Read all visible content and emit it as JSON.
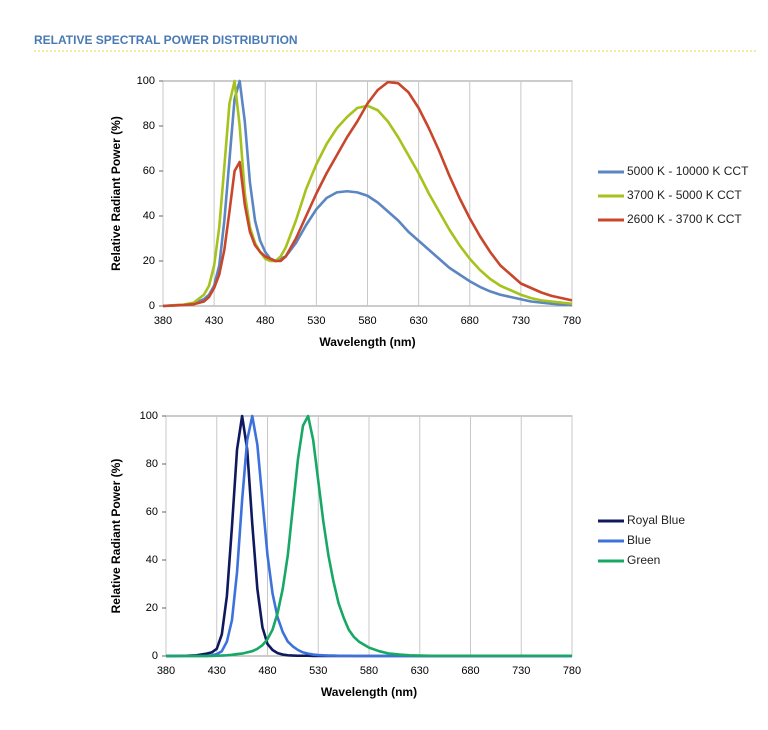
{
  "header": {
    "title": "RELATIVE SPECTRAL POWER DISTRIBUTION"
  },
  "chart_data": [
    {
      "type": "line",
      "x_label": "Wavelength (nm)",
      "y_label": "Relative Radiant Power (%)",
      "xlim": [
        380,
        780
      ],
      "ylim": [
        0,
        100
      ],
      "xticks": [
        380,
        430,
        480,
        530,
        580,
        630,
        680,
        730,
        780
      ],
      "yticks": [
        0,
        20,
        40,
        60,
        80,
        100
      ],
      "grid": true,
      "legend": "right",
      "x": [
        380,
        390,
        400,
        410,
        420,
        425,
        430,
        435,
        440,
        445,
        450,
        455,
        460,
        465,
        470,
        475,
        480,
        485,
        490,
        495,
        500,
        510,
        520,
        530,
        540,
        550,
        560,
        570,
        580,
        590,
        600,
        610,
        620,
        630,
        640,
        650,
        660,
        670,
        680,
        690,
        700,
        710,
        720,
        730,
        740,
        750,
        760,
        770,
        780
      ],
      "series": [
        {
          "name": "5000 K - 10000 K CCT",
          "color": "#5b86c2",
          "values": [
            0,
            0.3,
            0.5,
            1,
            3,
            5,
            9,
            18,
            38,
            65,
            92,
            100,
            82,
            55,
            38,
            29,
            24,
            21,
            20,
            21,
            22,
            28,
            36,
            43,
            48,
            50.5,
            51,
            50.5,
            49,
            46,
            42,
            38,
            33,
            29,
            25,
            21,
            17,
            14,
            11,
            8.5,
            6.5,
            5,
            4,
            3,
            2,
            1.5,
            1,
            0.7,
            0.5
          ]
        },
        {
          "name": "3700 K - 5000 K CCT",
          "color": "#a6c21d",
          "values": [
            0,
            0.3,
            0.6,
            1.5,
            5,
            9,
            18,
            35,
            62,
            90,
            100,
            80,
            50,
            35,
            28,
            24,
            21,
            20,
            20,
            22,
            26,
            38,
            52,
            63,
            72,
            79,
            84,
            88,
            89,
            87,
            82,
            75,
            67,
            59,
            50,
            42,
            34,
            27,
            21,
            16,
            12,
            9,
            7,
            5,
            3.5,
            2.5,
            2,
            1.5,
            1
          ]
        },
        {
          "name": "2600 K - 3700 K CCT",
          "color": "#c8462b",
          "values": [
            0,
            0.2,
            0.4,
            0.8,
            2,
            4,
            8,
            14,
            25,
            42,
            60,
            64,
            45,
            33,
            27,
            24,
            22,
            21,
            20,
            20,
            22,
            30,
            40,
            50,
            59,
            67,
            75,
            82,
            90,
            96,
            99.5,
            99,
            95,
            88,
            79,
            69,
            58,
            48,
            39,
            31,
            24,
            18,
            14,
            10,
            8,
            6,
            4.5,
            3.5,
            2.5
          ]
        }
      ]
    },
    {
      "type": "line",
      "x_label": "Wavelength (nm)",
      "y_label": "Relative Radiant Power (%)",
      "xlim": [
        380,
        780
      ],
      "ylim": [
        0,
        100
      ],
      "xticks": [
        380,
        430,
        480,
        530,
        580,
        630,
        680,
        730,
        780
      ],
      "yticks": [
        0,
        20,
        40,
        60,
        80,
        100
      ],
      "grid": true,
      "legend": "right",
      "x": [
        380,
        390,
        400,
        410,
        420,
        425,
        430,
        435,
        440,
        445,
        450,
        455,
        460,
        465,
        470,
        475,
        480,
        485,
        490,
        495,
        500,
        505,
        510,
        515,
        520,
        525,
        530,
        535,
        540,
        545,
        550,
        555,
        560,
        565,
        570,
        580,
        590,
        600,
        610,
        620,
        630,
        640,
        650,
        660,
        670,
        680,
        690,
        700,
        710,
        720,
        730,
        740,
        750,
        760,
        770,
        780
      ],
      "series": [
        {
          "name": "Royal Blue",
          "color": "#0f1a5e",
          "values": [
            0,
            0,
            0.1,
            0.3,
            1,
            1.5,
            3,
            9,
            25,
            54,
            86,
            100,
            86,
            55,
            28,
            12,
            5,
            2.5,
            1.2,
            0.6,
            0.3,
            0.2,
            0.1,
            0.1,
            0.1,
            0,
            0,
            0,
            0,
            0,
            0,
            0,
            0,
            0,
            0,
            0,
            0,
            0,
            0,
            0,
            0,
            0,
            0,
            0,
            0,
            0,
            0,
            0,
            0,
            0,
            0,
            0,
            0,
            0,
            0,
            0
          ]
        },
        {
          "name": "Blue",
          "color": "#3d72dc",
          "values": [
            0,
            0,
            0,
            0,
            0,
            0.3,
            0.8,
            2,
            6,
            15,
            35,
            65,
            90,
            100,
            88,
            65,
            42,
            26,
            16,
            10,
            6,
            4,
            2.5,
            1.5,
            1,
            0.6,
            0.4,
            0.3,
            0.2,
            0.2,
            0.1,
            0.1,
            0.1,
            0,
            0,
            0,
            0,
            0,
            0,
            0,
            0,
            0,
            0,
            0,
            0,
            0,
            0,
            0,
            0,
            0,
            0,
            0,
            0,
            0,
            0,
            0
          ]
        },
        {
          "name": "Green",
          "color": "#18a865",
          "values": [
            0,
            0,
            0,
            0,
            0,
            0,
            0.1,
            0.2,
            0.3,
            0.5,
            0.8,
            1,
            1.5,
            2,
            3,
            4.5,
            7,
            11,
            18,
            28,
            42,
            62,
            82,
            96,
            100,
            90,
            73,
            56,
            42,
            31,
            22,
            16,
            11,
            8,
            6,
            3.5,
            2,
            1,
            0.6,
            0.3,
            0.2,
            0.1,
            0.1,
            0.1,
            0.1,
            0.1,
            0.1,
            0.1,
            0.1,
            0.1,
            0.1,
            0.1,
            0.1,
            0.1,
            0.1,
            0.1
          ]
        }
      ]
    }
  ]
}
